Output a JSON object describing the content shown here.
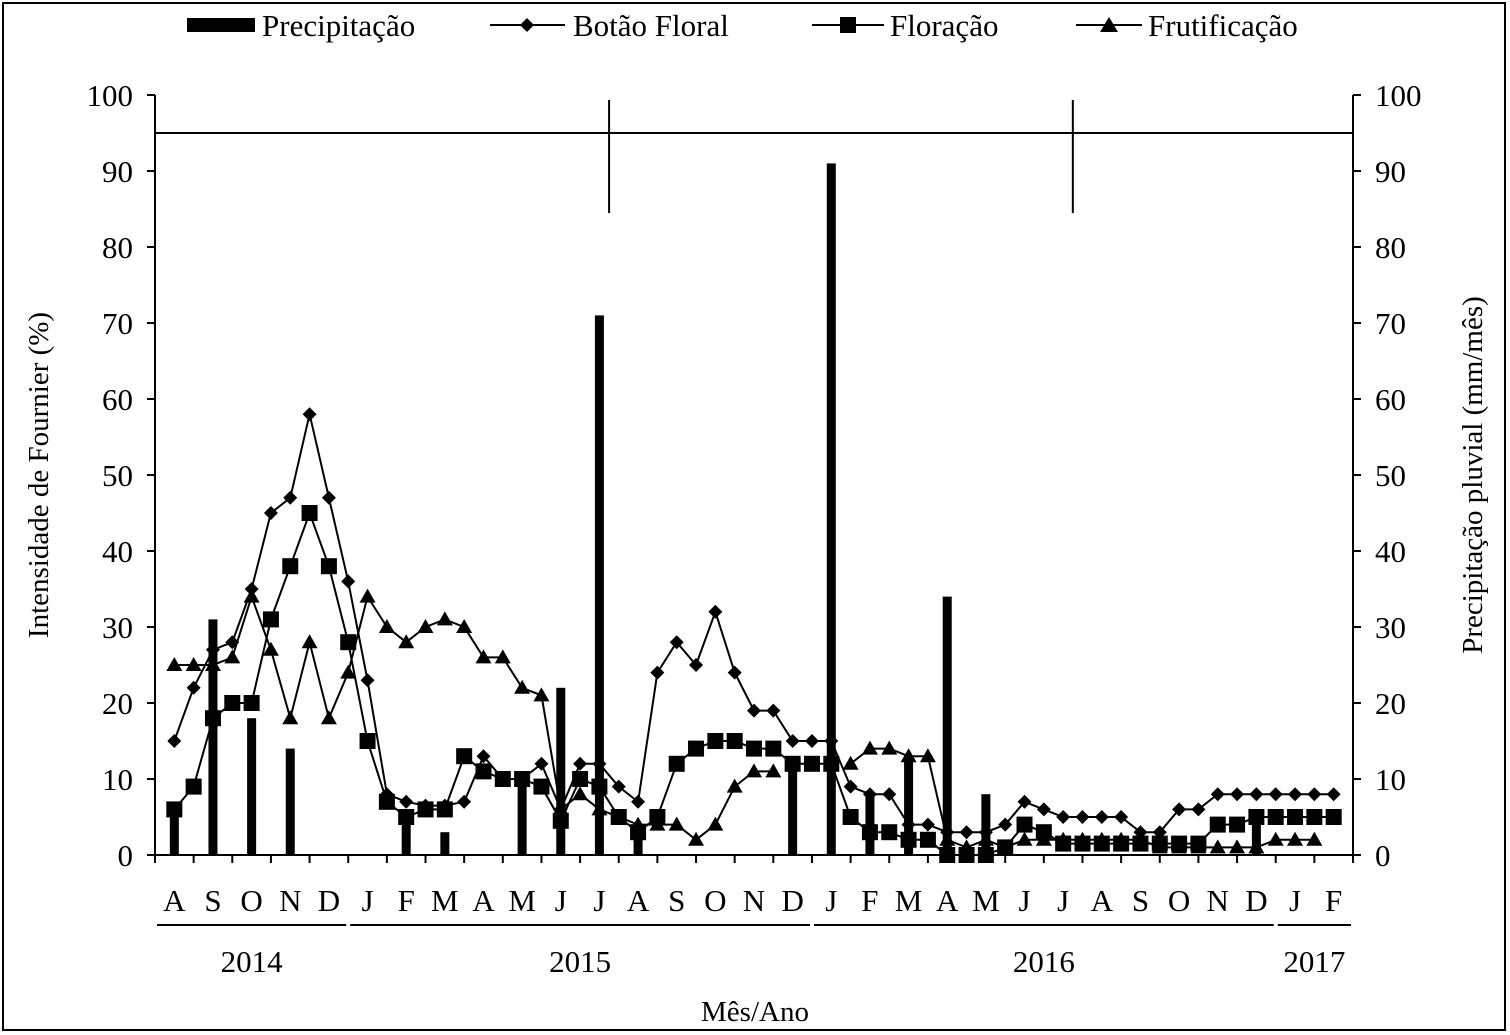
{
  "chart_data": {
    "type": "line",
    "legend": {
      "placement": "top",
      "entries": [
        "Precipitação",
        "Botão Floral",
        "Floração",
        "Frutificação"
      ]
    },
    "xlabel": "Mês/Ano",
    "ylabel_left": "Intensidade  de Fournier  (%)",
    "ylabel_right": "Precipitação  pluvial  (mm/mês)",
    "ylim_left": [
      0,
      100
    ],
    "ylim_right": [
      0,
      100
    ],
    "y_ticks": [
      "0",
      "10",
      "20",
      "30",
      "40",
      "50",
      "60",
      "70",
      "80",
      "90",
      "100"
    ],
    "month_labels": [
      "A",
      "S",
      "O",
      "N",
      "D",
      "J",
      "F",
      "M",
      "A",
      "M",
      "J",
      "J",
      "A",
      "S",
      "O",
      "N",
      "D",
      "J",
      "F",
      "M",
      "A",
      "M",
      "J",
      "J",
      "A",
      "S",
      "O",
      "N",
      "D",
      "J",
      "F"
    ],
    "years": [
      {
        "label": "2014",
        "start": 0,
        "end": 4
      },
      {
        "label": "2015",
        "start": 5,
        "end": 16
      },
      {
        "label": "2016",
        "start": 17,
        "end": 28
      },
      {
        "label": "2017",
        "start": 29,
        "end": 30
      }
    ],
    "reference_line_y": 95,
    "x": [
      0,
      0.5,
      1,
      1.5,
      2,
      2.5,
      3,
      3.5,
      4,
      4.5,
      5,
      5.5,
      6,
      6.5,
      7,
      7.5,
      8,
      8.5,
      9,
      9.5,
      10,
      10.5,
      11,
      11.5,
      12,
      12.5,
      13,
      13.5,
      14,
      14.5,
      15,
      15.5,
      16,
      16.5,
      17,
      17.5,
      18,
      18.5,
      19,
      19.5,
      20,
      20.5,
      21,
      21.5,
      22,
      22.5,
      23,
      23.5,
      24,
      24.5,
      25,
      25.5,
      26,
      26.5,
      27,
      27.5,
      28,
      28.5,
      29,
      29.5,
      30
    ],
    "series": [
      {
        "name": "Botão Floral",
        "type": "line",
        "marker": "diamond",
        "values": [
          15,
          22,
          27,
          28,
          35,
          45,
          47,
          58,
          47,
          36,
          23,
          8,
          7,
          6.5,
          6.5,
          7,
          13,
          10,
          10,
          12,
          6,
          12,
          12,
          9,
          7,
          24,
          28,
          25,
          32,
          24,
          19,
          19,
          15,
          15,
          15,
          9,
          8,
          8,
          4,
          4,
          3,
          3,
          3,
          4,
          7,
          6,
          5,
          5,
          5,
          5,
          3,
          3,
          6,
          6,
          8,
          8,
          8,
          8,
          8,
          8,
          8
        ]
      },
      {
        "name": "Floração",
        "type": "line",
        "marker": "square",
        "values": [
          6,
          9,
          18,
          20,
          20,
          31,
          38,
          45,
          38,
          28,
          15,
          7,
          5,
          6,
          6,
          13,
          11,
          10,
          10,
          9,
          4.5,
          10,
          9,
          5,
          3,
          5,
          12,
          14,
          15,
          15,
          14,
          14,
          12,
          12,
          12,
          5,
          3,
          3,
          2,
          2,
          0,
          0,
          0,
          1,
          4,
          3,
          1.5,
          1.5,
          1.5,
          1.5,
          1.5,
          1.5,
          1.5,
          1.5,
          4,
          4,
          5,
          5,
          5,
          5,
          5
        ]
      },
      {
        "name": "Frutificação",
        "type": "line",
        "marker": "triangle",
        "values": [
          25,
          25,
          25,
          26,
          34,
          27,
          18,
          28,
          18,
          24,
          34,
          30,
          28,
          30,
          31,
          30,
          26,
          26,
          22,
          21,
          6,
          8,
          6,
          5,
          4,
          4,
          4,
          2,
          4,
          9,
          11,
          11,
          null,
          null,
          null,
          12,
          14,
          14,
          13,
          13,
          2,
          1,
          2,
          1,
          2,
          2,
          2,
          2,
          2,
          2,
          2,
          1,
          1,
          1,
          1,
          1,
          1,
          2,
          2,
          2,
          null
        ]
      },
      {
        "name": "Precipitação",
        "type": "bar",
        "values": [
          6,
          null,
          31,
          null,
          18,
          null,
          14,
          null,
          null,
          null,
          null,
          null,
          5,
          null,
          3,
          null,
          null,
          null,
          10,
          null,
          22,
          null,
          71,
          null,
          2,
          null,
          null,
          null,
          null,
          null,
          null,
          null,
          13,
          null,
          91,
          null,
          8,
          null,
          13,
          null,
          34,
          null,
          8,
          null,
          null,
          null,
          null,
          null,
          null,
          null,
          null,
          null,
          null,
          null,
          null,
          null,
          6,
          null,
          null,
          null,
          null
        ]
      }
    ]
  }
}
